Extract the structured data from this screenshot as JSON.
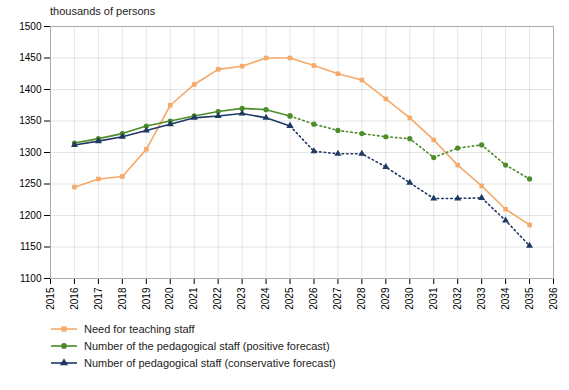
{
  "chart_data": {
    "type": "line",
    "ylabel": "thousands of persons",
    "x": [
      2016,
      2017,
      2018,
      2019,
      2020,
      2021,
      2022,
      2023,
      2024,
      2025,
      2026,
      2027,
      2028,
      2029,
      2030,
      2031,
      2032,
      2033,
      2034,
      2035
    ],
    "xlim": [
      2015,
      2036
    ],
    "xticks": [
      2015,
      2016,
      2017,
      2018,
      2019,
      2020,
      2021,
      2022,
      2023,
      2024,
      2025,
      2026,
      2027,
      2028,
      2029,
      2030,
      2031,
      2032,
      2033,
      2034,
      2035,
      2036
    ],
    "ylim": [
      1100,
      1500
    ],
    "yticks": [
      1100,
      1150,
      1200,
      1250,
      1300,
      1350,
      1400,
      1450,
      1500
    ],
    "grid": true,
    "series": [
      {
        "name": "Need for teaching staff",
        "color": "#f5a96a",
        "marker": "square",
        "line_style": "solid",
        "values": [
          1245,
          1258,
          1262,
          1305,
          1375,
          1408,
          1432,
          1437,
          1450,
          1450,
          1438,
          1425,
          1415,
          1385,
          1355,
          1320,
          1280,
          1247,
          1210,
          1185
        ]
      },
      {
        "name": "Number of the pedagogical staff (positive forecast)",
        "color": "#4e8c2a",
        "marker": "circle",
        "line_style": "solid",
        "values": [
          1315,
          1322,
          1330,
          1342,
          1350,
          1358,
          1365,
          1370,
          1368,
          1358,
          null,
          null,
          null,
          null,
          null,
          null,
          null,
          null,
          null,
          null
        ]
      },
      {
        "name": "Number of the pedagogical staff (positive forecast)",
        "color": "#4e8c2a",
        "marker": "circle",
        "line_style": "dotted",
        "values": [
          null,
          null,
          null,
          null,
          null,
          null,
          null,
          null,
          null,
          1358,
          1345,
          1335,
          1330,
          1325,
          1322,
          1292,
          1307,
          1312,
          1280,
          1258
        ]
      },
      {
        "name": "Number of pedagogical staff (conservative forecast)",
        "color": "#1f3864",
        "marker": "triangle",
        "line_style": "solid",
        "values": [
          1312,
          1318,
          1325,
          1335,
          1345,
          1355,
          1358,
          1362,
          1355,
          1342,
          null,
          null,
          null,
          null,
          null,
          null,
          null,
          null,
          null,
          null
        ]
      },
      {
        "name": "Number of pedagogical staff (conservative forecast)",
        "color": "#1f3864",
        "marker": "triangle",
        "line_style": "dotted",
        "values": [
          null,
          null,
          null,
          null,
          null,
          null,
          null,
          null,
          null,
          1342,
          1302,
          1298,
          1298,
          1277,
          1252,
          1227,
          1227,
          1228,
          1192,
          1152
        ]
      }
    ]
  }
}
